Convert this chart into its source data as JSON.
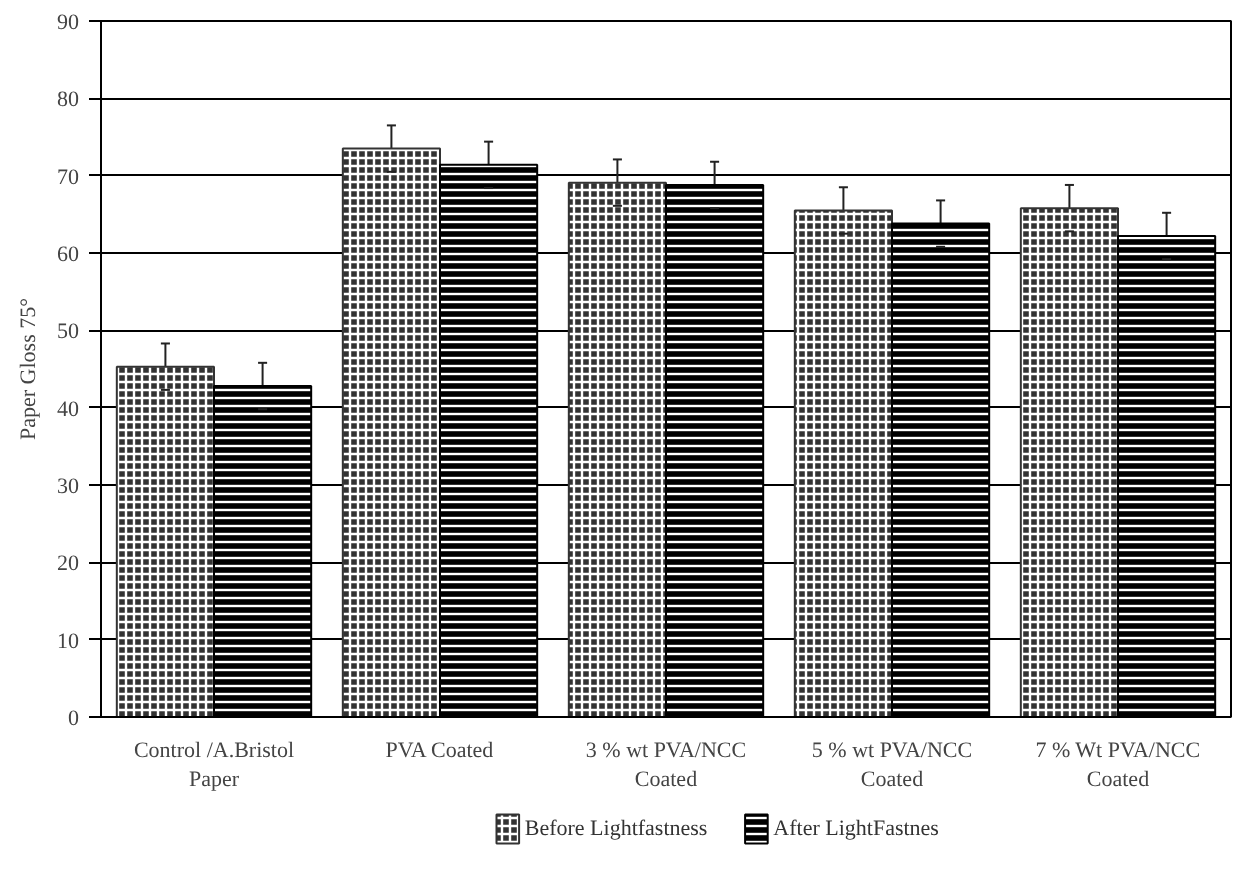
{
  "chart_data": {
    "type": "bar",
    "ylabel": "Paper Gloss 75°",
    "categories": [
      "Control /A.Bristol Paper",
      "PVA Coated",
      "3 % wt PVA/NCC Coated",
      "5 % wt PVA/NCC Coated",
      "7 % Wt PVA/NCC Coated"
    ],
    "series": [
      {
        "name": "Before Lightfastness",
        "color": "#333333",
        "values": [
          45.3,
          73.5,
          69.1,
          65.5,
          65.8
        ],
        "errors": [
          3,
          3,
          3,
          3,
          3
        ]
      },
      {
        "name": "After LightFastnes",
        "color": "#000000",
        "values": [
          42.8,
          71.4,
          68.8,
          63.8,
          62.2
        ],
        "errors": [
          3,
          3,
          3,
          3,
          3
        ]
      }
    ],
    "ylim": [
      0,
      90
    ],
    "yticks": [
      0,
      10,
      20,
      30,
      40,
      50,
      60,
      70,
      80,
      90
    ],
    "grid": "y",
    "legend": "bottom"
  }
}
